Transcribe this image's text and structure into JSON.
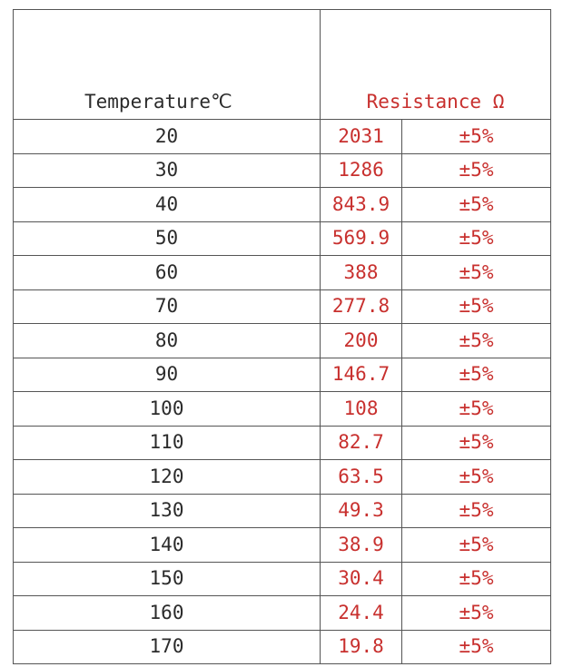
{
  "header": {
    "temperature_label": "Temperature℃",
    "resistance_label": "Resistance Ω"
  },
  "rows": [
    {
      "temperature": "20",
      "resistance": "2031",
      "tolerance": "±5%"
    },
    {
      "temperature": "30",
      "resistance": "1286",
      "tolerance": "±5%"
    },
    {
      "temperature": "40",
      "resistance": "843.9",
      "tolerance": "±5%"
    },
    {
      "temperature": "50",
      "resistance": "569.9",
      "tolerance": "±5%"
    },
    {
      "temperature": "60",
      "resistance": "388",
      "tolerance": "±5%"
    },
    {
      "temperature": "70",
      "resistance": "277.8",
      "tolerance": "±5%"
    },
    {
      "temperature": "80",
      "resistance": "200",
      "tolerance": "±5%"
    },
    {
      "temperature": "90",
      "resistance": "146.7",
      "tolerance": "±5%"
    },
    {
      "temperature": "100",
      "resistance": "108",
      "tolerance": "±5%"
    },
    {
      "temperature": "110",
      "resistance": "82.7",
      "tolerance": "±5%"
    },
    {
      "temperature": "120",
      "resistance": "63.5",
      "tolerance": "±5%"
    },
    {
      "temperature": "130",
      "resistance": "49.3",
      "tolerance": "±5%"
    },
    {
      "temperature": "140",
      "resistance": "38.9",
      "tolerance": "±5%"
    },
    {
      "temperature": "150",
      "resistance": "30.4",
      "tolerance": "±5%"
    },
    {
      "temperature": "160",
      "resistance": "24.4",
      "tolerance": "±5%"
    },
    {
      "temperature": "170",
      "resistance": "19.8",
      "tolerance": "±5%"
    }
  ],
  "colors": {
    "resistance_text": "#c8302e",
    "temperature_text": "#2b2b2b",
    "border": "#555555"
  }
}
